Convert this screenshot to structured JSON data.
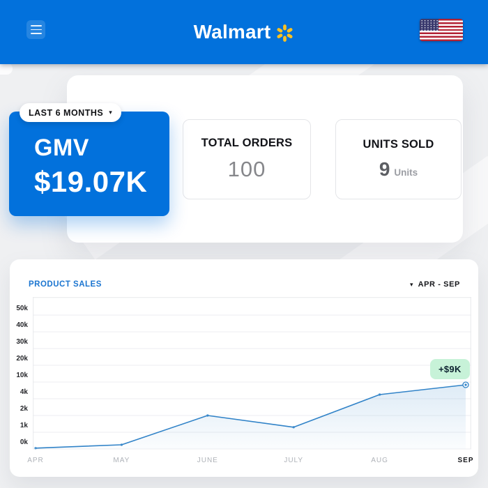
{
  "header": {
    "brand": "Walmart",
    "icons": {
      "menu": "hamburger-icon",
      "spark": "walmart-spark-icon",
      "flag": "us-flag-icon"
    }
  },
  "icons": {
    "caret_down": "▾"
  },
  "summary": {
    "period_label": "LAST 6 MONTHS",
    "gmv": {
      "label": "GMV",
      "value": "$19.07K"
    },
    "total_orders": {
      "label": "TOTAL ORDERS",
      "value": "100"
    },
    "units_sold": {
      "label": "UNITS SOLD",
      "value": "9",
      "unit": "Units"
    }
  },
  "chart": {
    "title": "PRODUCT SALES",
    "range_label": "APR - SEP",
    "badge": "+$9K"
  },
  "chart_data": {
    "type": "area",
    "title": "PRODUCT SALES",
    "categories": [
      "APR",
      "MAY",
      "JUNE",
      "JULY",
      "AUG",
      "SEP"
    ],
    "values": [
      50,
      250,
      2000,
      1300,
      5500,
      9000
    ],
    "ytick_labels": [
      "50k",
      "40k",
      "30k",
      "20k",
      "10k",
      "4k",
      "2k",
      "1k",
      "0k"
    ],
    "ytick_values": [
      50000,
      40000,
      30000,
      20000,
      10000,
      4000,
      2000,
      1000,
      0
    ],
    "scale_note": "y ticks evenly spaced (non-linear scale)",
    "grid": true,
    "legend": "none",
    "line_color": "#3183c8",
    "annotation": {
      "text": "+$9K",
      "point": "SEP"
    },
    "highlighted_category": "SEP"
  },
  "colors": {
    "walmart_blue": "#0271dc",
    "spark_yellow": "#ffc220",
    "badge_bg": "#c7f2d8",
    "title_blue": "#1b75d0",
    "grid_line": "#edeef1"
  }
}
